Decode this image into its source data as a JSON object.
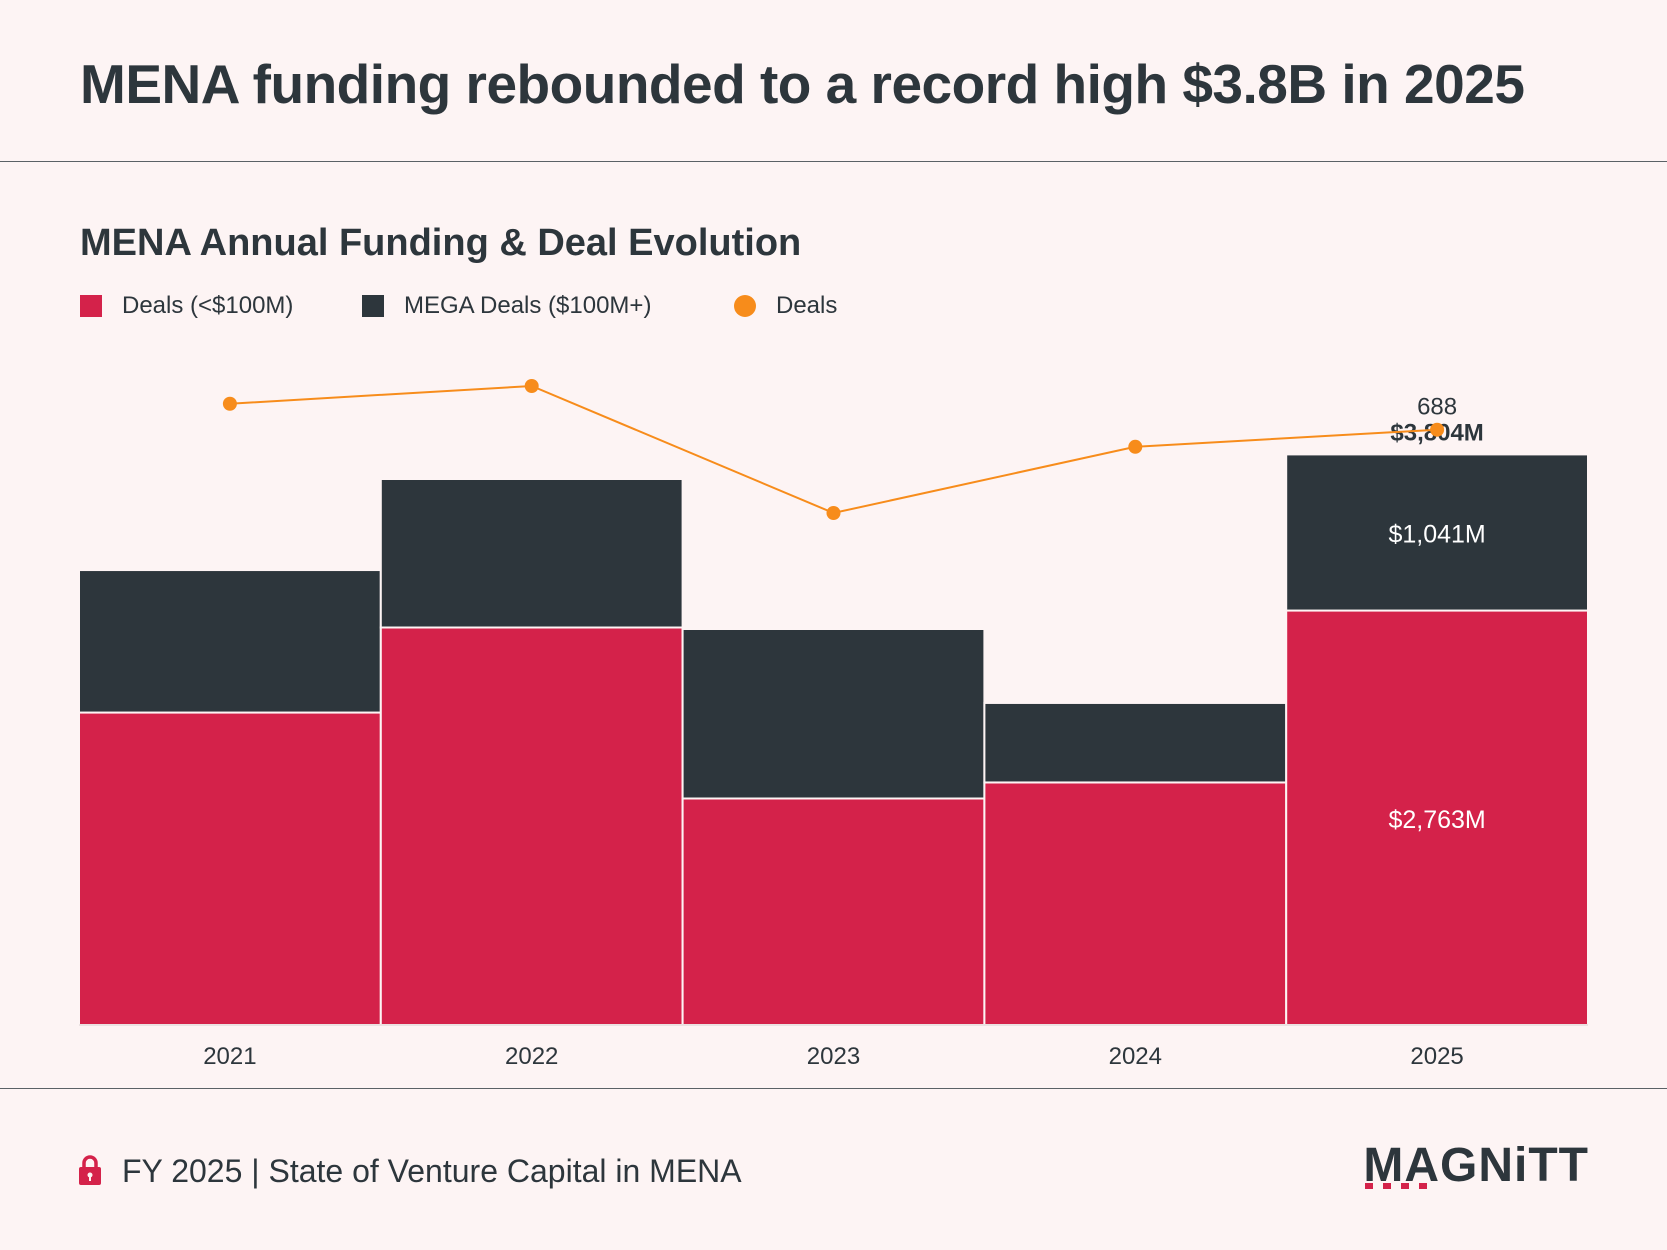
{
  "header": {
    "title": "MENA funding rebounded to a record high $3.8B in 2025"
  },
  "chart_data": {
    "type": "bar",
    "subtitle": "MENA Annual Funding & Deal Evolution",
    "stacked": true,
    "categories": [
      "2021",
      "2022",
      "2023",
      "2024",
      "2025"
    ],
    "series": [
      {
        "name": "Deals (<$100M)",
        "values": [
          2083,
          2650,
          1510,
          1617,
          2763
        ],
        "color": "#d4224a"
      },
      {
        "name": "MEGA Deals ($100M+)",
        "values": [
          950,
          990,
          1130,
          530,
          1041
        ],
        "color": "#2d363c"
      }
    ],
    "line_series": {
      "name": "Deals",
      "values": [
        726,
        752,
        566,
        663,
        688
      ],
      "color": "#f78c1b"
    },
    "data_labels": {
      "bar_bottom_2025": "$2,763M",
      "bar_top_2025": "$1,041M",
      "total_2025": "$3,804M",
      "deals_2025": "688"
    },
    "ylim": [
      0,
      4200
    ],
    "line_ylim": [
      0,
      1350
    ],
    "legend_position": "top-left",
    "grid": false,
    "xlabel": "",
    "ylabel": ""
  },
  "footer": {
    "report": "FY 2025 | State of Venture Capital in MENA",
    "logo": "MAGNiTT"
  }
}
